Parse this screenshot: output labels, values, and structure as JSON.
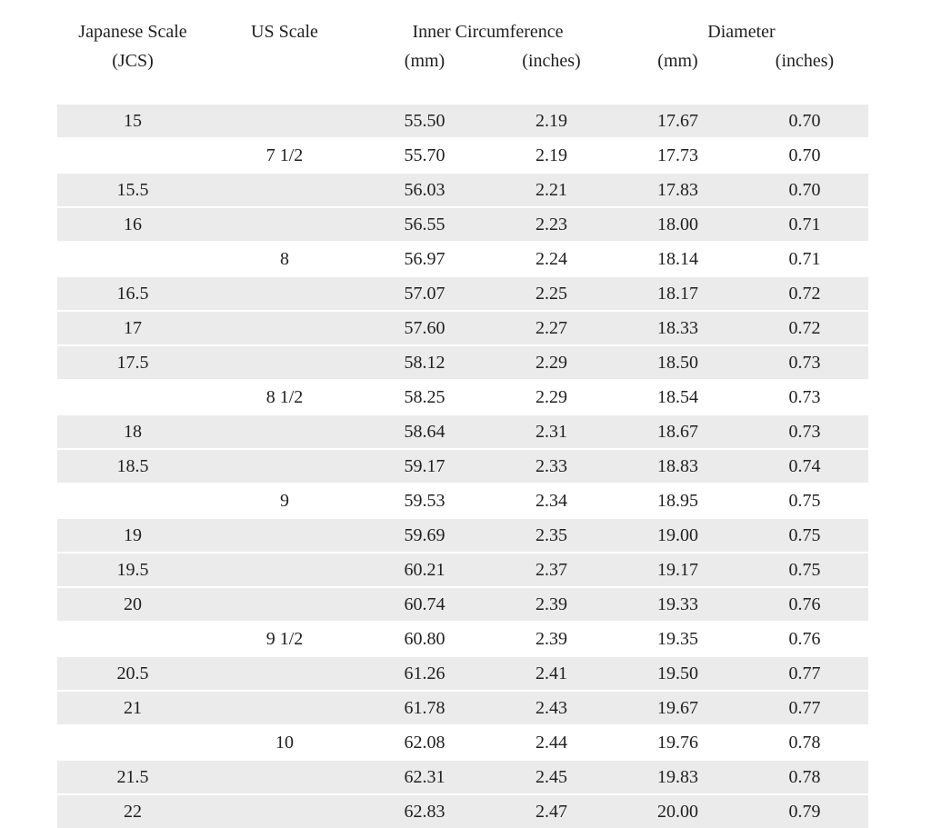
{
  "table": {
    "headers": {
      "japanese_scale": "Japanese Scale",
      "jcs": "(JCS)",
      "us_scale": "US Scale",
      "inner_circumference": "Inner Circumference",
      "diameter": "Diameter",
      "circ_mm_unit": "(mm)",
      "circ_inches_unit": "(inches)",
      "dia_mm_unit": "(mm)",
      "dia_inches_unit": "(inches)"
    },
    "rows": [
      {
        "jcs": "15",
        "us": "",
        "circ_mm": "55.50",
        "circ_in": "2.19",
        "dia_mm": "17.67",
        "dia_in": "0.70",
        "shaded": true
      },
      {
        "jcs": "",
        "us": "7 1/2",
        "circ_mm": "55.70",
        "circ_in": "2.19",
        "dia_mm": "17.73",
        "dia_in": "0.70",
        "shaded": false
      },
      {
        "jcs": "15.5",
        "us": "",
        "circ_mm": "56.03",
        "circ_in": "2.21",
        "dia_mm": "17.83",
        "dia_in": "0.70",
        "shaded": true
      },
      {
        "jcs": "16",
        "us": "",
        "circ_mm": "56.55",
        "circ_in": "2.23",
        "dia_mm": "18.00",
        "dia_in": "0.71",
        "shaded": true
      },
      {
        "jcs": "",
        "us": "8",
        "circ_mm": "56.97",
        "circ_in": "2.24",
        "dia_mm": "18.14",
        "dia_in": "0.71",
        "shaded": false
      },
      {
        "jcs": "16.5",
        "us": "",
        "circ_mm": "57.07",
        "circ_in": "2.25",
        "dia_mm": "18.17",
        "dia_in": "0.72",
        "shaded": true
      },
      {
        "jcs": "17",
        "us": "",
        "circ_mm": "57.60",
        "circ_in": "2.27",
        "dia_mm": "18.33",
        "dia_in": "0.72",
        "shaded": true
      },
      {
        "jcs": "17.5",
        "us": "",
        "circ_mm": "58.12",
        "circ_in": "2.29",
        "dia_mm": "18.50",
        "dia_in": "0.73",
        "shaded": true
      },
      {
        "jcs": "",
        "us": "8 1/2",
        "circ_mm": "58.25",
        "circ_in": "2.29",
        "dia_mm": "18.54",
        "dia_in": "0.73",
        "shaded": false
      },
      {
        "jcs": "18",
        "us": "",
        "circ_mm": "58.64",
        "circ_in": "2.31",
        "dia_mm": "18.67",
        "dia_in": "0.73",
        "shaded": true
      },
      {
        "jcs": "18.5",
        "us": "",
        "circ_mm": "59.17",
        "circ_in": "2.33",
        "dia_mm": "18.83",
        "dia_in": "0.74",
        "shaded": true
      },
      {
        "jcs": "",
        "us": "9",
        "circ_mm": "59.53",
        "circ_in": "2.34",
        "dia_mm": "18.95",
        "dia_in": "0.75",
        "shaded": false
      },
      {
        "jcs": "19",
        "us": "",
        "circ_mm": "59.69",
        "circ_in": "2.35",
        "dia_mm": "19.00",
        "dia_in": "0.75",
        "shaded": true
      },
      {
        "jcs": "19.5",
        "us": "",
        "circ_mm": "60.21",
        "circ_in": "2.37",
        "dia_mm": "19.17",
        "dia_in": "0.75",
        "shaded": true
      },
      {
        "jcs": "20",
        "us": "",
        "circ_mm": "60.74",
        "circ_in": "2.39",
        "dia_mm": "19.33",
        "dia_in": "0.76",
        "shaded": true
      },
      {
        "jcs": "",
        "us": "9 1/2",
        "circ_mm": "60.80",
        "circ_in": "2.39",
        "dia_mm": "19.35",
        "dia_in": "0.76",
        "shaded": false
      },
      {
        "jcs": "20.5",
        "us": "",
        "circ_mm": "61.26",
        "circ_in": "2.41",
        "dia_mm": "19.50",
        "dia_in": "0.77",
        "shaded": true
      },
      {
        "jcs": "21",
        "us": "",
        "circ_mm": "61.78",
        "circ_in": "2.43",
        "dia_mm": "19.67",
        "dia_in": "0.77",
        "shaded": true
      },
      {
        "jcs": "",
        "us": "10",
        "circ_mm": "62.08",
        "circ_in": "2.44",
        "dia_mm": "19.76",
        "dia_in": "0.78",
        "shaded": false
      },
      {
        "jcs": "21.5",
        "us": "",
        "circ_mm": "62.31",
        "circ_in": "2.45",
        "dia_mm": "19.83",
        "dia_in": "0.78",
        "shaded": true
      },
      {
        "jcs": "22",
        "us": "",
        "circ_mm": "62.83",
        "circ_in": "2.47",
        "dia_mm": "20.00",
        "dia_in": "0.79",
        "shaded": true
      }
    ]
  },
  "colors": {
    "row_shaded": "#ebebeb",
    "text": "#1f1f1f",
    "background": "#ffffff"
  }
}
